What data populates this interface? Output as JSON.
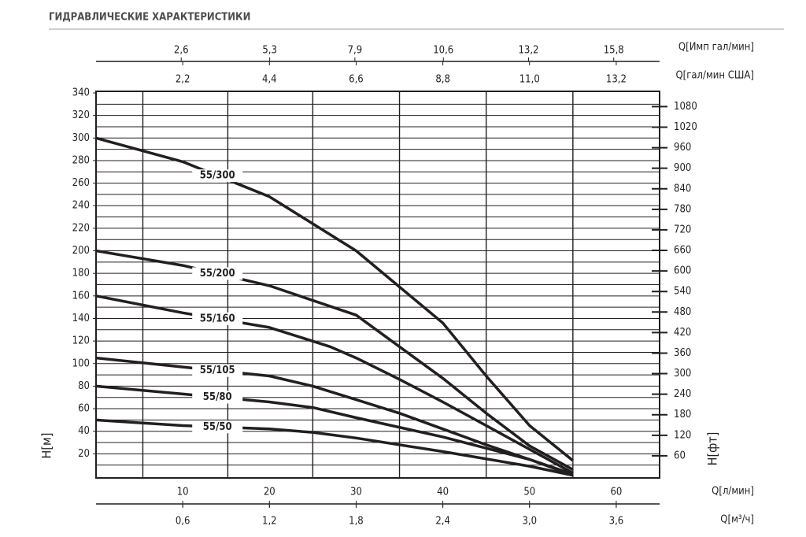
{
  "chart_data": {
    "type": "line",
    "title": "ГИДРАВЛИЧЕСКИЕ ХАРАКТЕРИСТИКИ",
    "xlabel": "Q[л/мин]",
    "ylabel": "H[м]",
    "y2label": "H[фт]",
    "xlim": [
      0,
      65
    ],
    "xticks": [
      10,
      20,
      30,
      40,
      50,
      60
    ],
    "xgrid": [
      5.4,
      15.2,
      25,
      35,
      45,
      55
    ],
    "ylim": [
      0,
      340
    ],
    "yticks": [
      20,
      40,
      60,
      80,
      100,
      120,
      140,
      160,
      180,
      200,
      220,
      240,
      260,
      280,
      300,
      320,
      340
    ],
    "ygrid": [
      10,
      20,
      30,
      40,
      50,
      60,
      70,
      80,
      90,
      100,
      110,
      120,
      130,
      140,
      150,
      160,
      170,
      180,
      190,
      200,
      210,
      220,
      230,
      240,
      250,
      260,
      270,
      280,
      290,
      300,
      310,
      320,
      330
    ],
    "y2lim": [
      0,
      1120
    ],
    "y2ticks": [
      60,
      120,
      180,
      240,
      300,
      360,
      420,
      480,
      540,
      600,
      660,
      720,
      780,
      840,
      900,
      960,
      1020,
      1080
    ],
    "extra_x_axes": [
      {
        "label": "Q[Имп гал/мин]",
        "position": "top",
        "xlim": [
          0,
          17.2
        ],
        "xticks": [
          {
            "value": 2.6,
            "label": "2,6"
          },
          {
            "value": 5.3,
            "label": "5,3"
          },
          {
            "value": 7.9,
            "label": "7,9"
          },
          {
            "value": 10.6,
            "label": "10,6"
          },
          {
            "value": 13.2,
            "label": "13,2"
          },
          {
            "value": 15.8,
            "label": "15,8"
          }
        ]
      },
      {
        "label": "Q[гал/мин США]",
        "position": "top",
        "xlim": [
          0,
          14.3
        ],
        "xticks": [
          {
            "value": 2.2,
            "label": "2,2"
          },
          {
            "value": 4.4,
            "label": "4,4"
          },
          {
            "value": 6.6,
            "label": "6,6"
          },
          {
            "value": 8.8,
            "label": "8,8"
          },
          {
            "value": 11.0,
            "label": "11,0"
          },
          {
            "value": 13.2,
            "label": "13,2"
          }
        ]
      },
      {
        "label": "Q[м³/ч]",
        "position": "bottom",
        "xlim": [
          0,
          3.9
        ],
        "xticks": [
          {
            "value": 0.6,
            "label": "0,6"
          },
          {
            "value": 1.2,
            "label": "1,2"
          },
          {
            "value": 1.8,
            "label": "1,8"
          },
          {
            "value": 2.4,
            "label": "2,4"
          },
          {
            "value": 3.0,
            "label": "3,0"
          },
          {
            "value": 3.6,
            "label": "3,6"
          }
        ]
      }
    ],
    "color": "#231f20",
    "series": [
      {
        "name": "55/300",
        "x": [
          0,
          10,
          20,
          30,
          40,
          45,
          50,
          55
        ],
        "values": [
          300,
          279,
          248,
          200,
          136,
          89,
          45,
          14
        ]
      },
      {
        "name": "55/200",
        "x": [
          0,
          10,
          20,
          30,
          35,
          40,
          45,
          50,
          55
        ],
        "values": [
          200,
          187,
          169,
          143,
          115,
          87,
          56,
          27,
          6
        ]
      },
      {
        "name": "55/160",
        "x": [
          0,
          10,
          20,
          27,
          30,
          35,
          40,
          45,
          50,
          55
        ],
        "values": [
          160,
          145,
          132,
          115,
          105,
          86,
          66,
          45,
          24,
          3
        ]
      },
      {
        "name": "55/105",
        "x": [
          0,
          10,
          20,
          25,
          30,
          35,
          40,
          45,
          50,
          55
        ],
        "values": [
          105,
          97,
          89,
          80,
          68,
          56,
          42,
          28,
          15,
          2
        ]
      },
      {
        "name": "55/80",
        "x": [
          0,
          10,
          20,
          25,
          30,
          40,
          50,
          55
        ],
        "values": [
          80,
          73,
          66,
          61,
          52,
          35,
          15,
          1
        ]
      },
      {
        "name": "55/50",
        "x": [
          0,
          10,
          20,
          25,
          30,
          40,
          50,
          55
        ],
        "values": [
          50,
          45,
          42,
          39,
          34,
          22,
          9,
          1
        ]
      }
    ]
  }
}
